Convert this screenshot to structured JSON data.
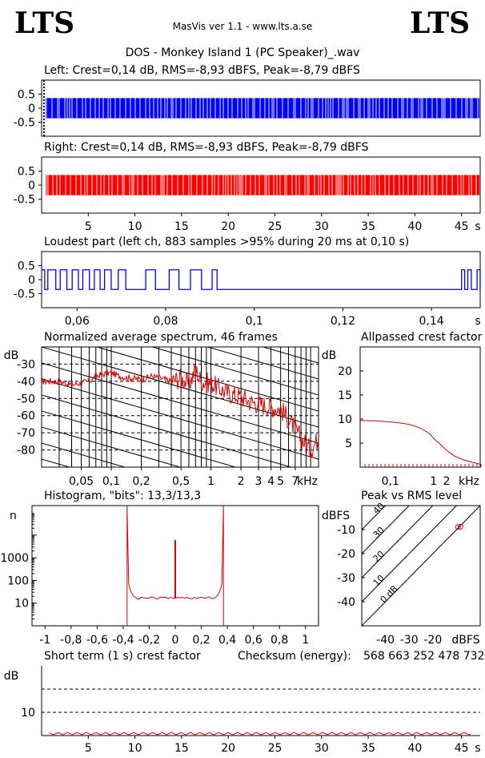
{
  "header": {
    "logo_left": "LTS",
    "logo_right": "LTS",
    "app_title": "MasVis ver 1.1 - www.lts.a.se",
    "file_title": "DOS - Monkey Island 1 (PC Speaker)_.wav"
  },
  "colors": {
    "left": "#0000ff",
    "right": "#ff0000",
    "grid": "#000000"
  },
  "chart_data": [
    {
      "type": "area",
      "title": "Left: Crest=0,14 dB, RMS=-8,93 dBFS, Peak=-8,79 dBFS",
      "channel": "left",
      "x_range": [
        0,
        47
      ],
      "ylim": [
        -1,
        1
      ],
      "amplitude": 0.36,
      "yticks": [
        "0.5",
        "0",
        "-0.5"
      ]
    },
    {
      "type": "area",
      "title": "Right: Crest=0,14 dB, RMS=-8,93 dBFS, Peak=-8,79 dBFS",
      "channel": "right",
      "x_range": [
        0,
        47
      ],
      "ylim": [
        -1,
        1
      ],
      "amplitude": 0.36,
      "yticks": [
        "0.5",
        "0",
        "-0.5"
      ],
      "xticks": [
        "5",
        "10",
        "15",
        "20",
        "25",
        "30",
        "35",
        "40",
        "45"
      ],
      "xunit": "s"
    },
    {
      "type": "line",
      "title": "Loudest part (left  ch, 883 samples >95% during 20 ms at 0,10 s)",
      "x_range": [
        0.052,
        0.151
      ],
      "ylim": [
        -1,
        1
      ],
      "yticks": [
        "0.5",
        "0",
        "-0.5"
      ],
      "xticks": [
        "0,06",
        "0,08",
        "0,1",
        "0,12",
        "0,14"
      ],
      "xunit": "s",
      "high_segments": [
        [
          0.0534,
          0.0552
        ],
        [
          0.0562,
          0.0577
        ],
        [
          0.0589,
          0.0603
        ],
        [
          0.0613,
          0.0628
        ],
        [
          0.0639,
          0.0652
        ],
        [
          0.0662,
          0.0677
        ],
        [
          0.0693,
          0.071
        ],
        [
          0.0755,
          0.0777
        ],
        [
          0.0808,
          0.083
        ],
        [
          0.0856,
          0.0881
        ],
        [
          0.0905,
          0.0916
        ],
        [
          0.1468,
          0.1475
        ],
        [
          0.1482,
          0.149
        ],
        [
          0.1503,
          0.151
        ]
      ],
      "high_level": 0.35,
      "low_level": -0.35
    },
    {
      "type": "line",
      "title": "Normalized average spectrum, 46 frames",
      "ylabel": "dB",
      "xunit": "kHz",
      "yticks": [
        "-30",
        "-40",
        "-50",
        "-60",
        "-70",
        "-80"
      ],
      "xticks": [
        "0,05",
        "0,1",
        "0,2",
        "0,5",
        "1",
        "2",
        "3",
        "4",
        "5",
        "7"
      ],
      "x_khz": [
        0.02,
        0.03,
        0.04,
        0.05,
        0.06,
        0.07,
        0.08,
        0.1,
        0.12,
        0.15,
        0.2,
        0.25,
        0.3,
        0.4,
        0.5,
        0.6,
        0.7,
        0.8,
        1,
        1.2,
        1.5,
        2,
        2.5,
        3,
        4,
        5,
        6,
        7,
        8,
        10,
        12
      ],
      "y_db": [
        -40,
        -40,
        -42,
        -41,
        -40,
        -37,
        -36,
        -35,
        -37,
        -38,
        -39,
        -37,
        -38,
        -40,
        -38,
        -42,
        -33,
        -40,
        -41,
        -44,
        -47,
        -49,
        -52,
        -53,
        -55,
        -56,
        -62,
        -68,
        -73,
        -80,
        -73
      ],
      "ylim": [
        -90,
        -20
      ]
    },
    {
      "type": "line",
      "title": "Allpassed crest factor",
      "ylabel": "dB",
      "xunit": "kHz",
      "yticks": [
        "20",
        "15",
        "10",
        "5"
      ],
      "xticks": [
        "0,1",
        "1",
        "2"
      ],
      "x_khz": [
        0.02,
        0.05,
        0.1,
        0.2,
        0.3,
        0.5,
        0.8,
        1,
        1.5,
        2,
        3,
        5,
        8,
        12
      ],
      "y_db": [
        9.7,
        9.6,
        9.4,
        9.1,
        8.8,
        8.1,
        7.0,
        6.0,
        4.6,
        3.5,
        2.3,
        1.5,
        1.0,
        0.6
      ],
      "ylim": [
        0,
        25
      ]
    },
    {
      "type": "bar",
      "title": "Histogram, \"bits\": 13,3/13,3",
      "ylabel": "n",
      "yticks": [
        "1000",
        "100",
        "10"
      ],
      "xticks": [
        "-1",
        "-0,8",
        "-0,6",
        "-0,4",
        "-0,2",
        "0",
        "0,2",
        "0,4",
        "0,6",
        "0,8",
        "1"
      ],
      "xlim": [
        -1.1,
        1.1
      ],
      "spikes": [
        {
          "x": -0.37,
          "n": 100000
        },
        {
          "x": 0.0,
          "n": 6000
        },
        {
          "x": 0.37,
          "n": 100000
        }
      ],
      "floor_n": 17
    },
    {
      "type": "scatter",
      "title": "Peak vs RMS level",
      "ylabel": "dBFS",
      "xunit": "dBFS",
      "yticks": [
        "-10",
        "-20",
        "-30",
        "-40"
      ],
      "xticks": [
        "-40",
        "-30",
        "-20"
      ],
      "crest_lines": [
        "40",
        "30",
        "20",
        "10",
        "0 dB"
      ],
      "points": [
        {
          "rms": -9.4,
          "peak": -8.9
        },
        {
          "rms": -8.3,
          "peak": -8.8
        }
      ],
      "xlim": [
        -50,
        0
      ],
      "ylim": [
        -50,
        0
      ]
    },
    {
      "type": "line",
      "title": "Short term (1 s) crest factor",
      "checksum_label": "Checksum (energy):",
      "checksum_value": "568 663 252 478 732",
      "ylabel": "dB",
      "yticks": [
        "10"
      ],
      "xticks": [
        "5",
        "10",
        "15",
        "20",
        "25",
        "30",
        "35",
        "40",
        "45"
      ],
      "xunit": "s",
      "x_range": [
        0,
        47
      ],
      "ylim": [
        0,
        30
      ],
      "level_db": 0.14
    }
  ]
}
